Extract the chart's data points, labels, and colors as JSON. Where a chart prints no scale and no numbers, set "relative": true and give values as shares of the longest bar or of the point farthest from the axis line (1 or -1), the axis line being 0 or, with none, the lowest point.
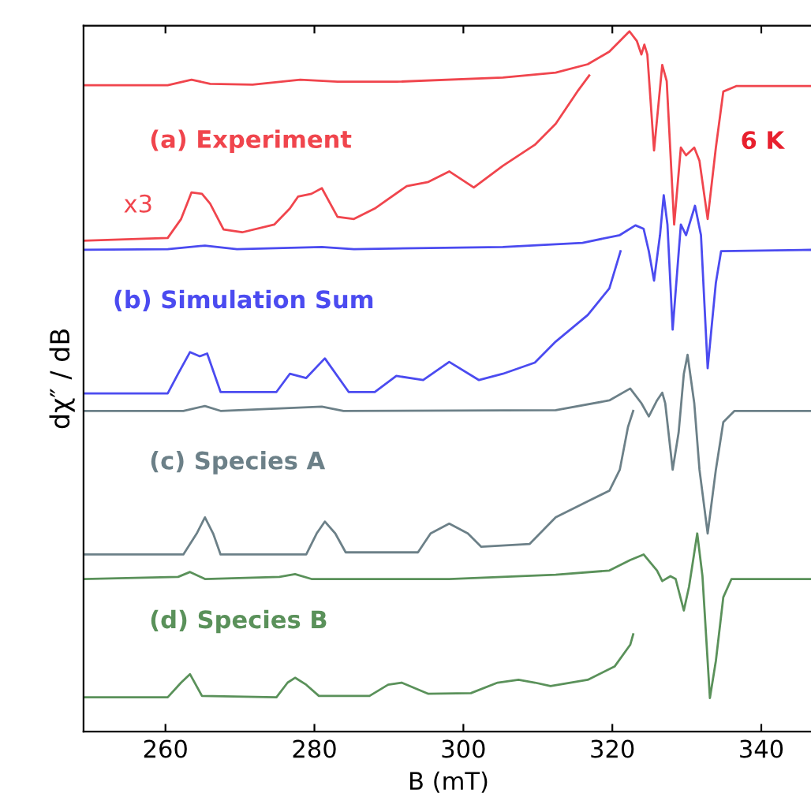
{
  "chart_data": {
    "type": "line",
    "relative": true,
    "xlabel": "B (mT)",
    "ylabel": "dχ″ / dB",
    "xlim": [
      249,
      347
    ],
    "xticks": [
      260,
      280,
      300,
      320,
      340
    ],
    "tick_labels": "x",
    "grid": false,
    "legend": false,
    "annotations": [
      "x3",
      "6 K"
    ],
    "series": [
      {
        "name": "(a) Experiment",
        "color": "#f0454d",
        "x": [
          249,
          260.3,
          263.5,
          266,
          271.7,
          278.1,
          283.1,
          291,
          305.3,
          312.4,
          316.7,
          319.6,
          322.3,
          323.3,
          323.9,
          324.3,
          324.7,
          325.6,
          326.7,
          327.3,
          328.3,
          329.2,
          329.9,
          331,
          331.7,
          332.8,
          333.9,
          334.9,
          336.7,
          347
        ],
        "values": [
          0.923,
          0.923,
          0.931,
          0.925,
          0.924,
          0.931,
          0.928,
          0.928,
          0.934,
          0.941,
          0.953,
          0.971,
          1.0,
          0.986,
          0.967,
          0.981,
          0.967,
          0.83,
          0.952,
          0.929,
          0.724,
          0.834,
          0.823,
          0.834,
          0.815,
          0.732,
          0.834,
          0.914,
          0.922,
          0.922
        ]
      },
      {
        "color": "#f0454d",
        "x": [
          249,
          260.3,
          262.1,
          263.5,
          264.9,
          266,
          267.8,
          270.3,
          274.6,
          276.7,
          277.8,
          279.6,
          281,
          283.1,
          285.3,
          288.1,
          292.4,
          295.3,
          298.1,
          301.4,
          305.3,
          309.6,
          312.4,
          315.3,
          316.9
        ],
        "values": [
          0.701,
          0.705,
          0.732,
          0.77,
          0.768,
          0.754,
          0.717,
          0.713,
          0.724,
          0.747,
          0.764,
          0.768,
          0.776,
          0.735,
          0.732,
          0.747,
          0.779,
          0.785,
          0.8,
          0.777,
          0.808,
          0.838,
          0.868,
          0.914,
          0.937
        ]
      },
      {
        "name": "(b) Simulation Sum",
        "color": "#4b4bf0",
        "x": [
          249,
          260.3,
          265.3,
          269.6,
          281,
          285.3,
          305.3,
          316,
          321,
          323.1,
          324.2,
          324.9,
          325.6,
          326.4,
          326.9,
          327.4,
          328.1,
          329.2,
          329.9,
          331.1,
          331.9,
          332.8,
          333.9,
          334.6,
          347
        ],
        "values": [
          0.688,
          0.689,
          0.694,
          0.689,
          0.692,
          0.689,
          0.692,
          0.698,
          0.709,
          0.723,
          0.718,
          0.686,
          0.644,
          0.709,
          0.766,
          0.724,
          0.574,
          0.724,
          0.709,
          0.751,
          0.709,
          0.519,
          0.641,
          0.686,
          0.688
        ]
      },
      {
        "color": "#4b4bf0",
        "x": [
          249,
          260.3,
          261.7,
          263.3,
          264.6,
          265.6,
          267.4,
          274.9,
          276.7,
          278.9,
          281.4,
          284.6,
          288.1,
          291,
          294.6,
          298.1,
          302.1,
          305.3,
          309.6,
          312.4,
          316.7,
          319.6,
          321.1
        ],
        "values": [
          0.483,
          0.483,
          0.511,
          0.542,
          0.536,
          0.54,
          0.485,
          0.485,
          0.511,
          0.505,
          0.533,
          0.485,
          0.485,
          0.508,
          0.502,
          0.528,
          0.502,
          0.511,
          0.527,
          0.557,
          0.595,
          0.633,
          0.686
        ]
      },
      {
        "name": "(c) Species A",
        "color": "#6c8088",
        "x": [
          249,
          262.4,
          265.3,
          267.4,
          281,
          283.9,
          312.4,
          319.6,
          322.4,
          323.9,
          324.9,
          326,
          326.7,
          327.1,
          328.1,
          328.9,
          329.6,
          330.1,
          331,
          331.7,
          332.8,
          333.9,
          334.9,
          336.4,
          347
        ],
        "values": [
          0.458,
          0.458,
          0.465,
          0.458,
          0.464,
          0.458,
          0.459,
          0.473,
          0.49,
          0.469,
          0.45,
          0.473,
          0.484,
          0.469,
          0.374,
          0.427,
          0.511,
          0.538,
          0.469,
          0.374,
          0.283,
          0.374,
          0.442,
          0.458,
          0.458
        ]
      },
      {
        "color": "#6c8088",
        "x": [
          249,
          262.4,
          264.2,
          265.3,
          266.4,
          267.4,
          278.9,
          280.3,
          281.4,
          282.8,
          284.2,
          293.9,
          295.6,
          298.1,
          300.6,
          302.4,
          308.9,
          312.4,
          316.7,
          319.6,
          321,
          322.1,
          322.8
        ],
        "values": [
          0.253,
          0.253,
          0.283,
          0.306,
          0.283,
          0.253,
          0.253,
          0.283,
          0.3,
          0.283,
          0.256,
          0.256,
          0.283,
          0.297,
          0.283,
          0.264,
          0.268,
          0.306,
          0.329,
          0.344,
          0.374,
          0.435,
          0.458
        ]
      },
      {
        "name": "(d) Species B",
        "color": "#5a915a",
        "x": [
          249,
          261.7,
          263.3,
          265.3,
          275.3,
          277.4,
          279.6,
          298.1,
          312.4,
          319.6,
          322.4,
          324.2,
          326,
          326.7,
          327.8,
          328.5,
          329.6,
          330.3,
          331.4,
          332.1,
          333.1,
          333.9,
          334.9,
          336,
          347
        ],
        "values": [
          0.218,
          0.221,
          0.228,
          0.218,
          0.221,
          0.225,
          0.218,
          0.218,
          0.224,
          0.23,
          0.245,
          0.253,
          0.23,
          0.215,
          0.222,
          0.218,
          0.173,
          0.207,
          0.283,
          0.222,
          0.048,
          0.101,
          0.192,
          0.218,
          0.218
        ]
      },
      {
        "color": "#5a915a",
        "x": [
          249,
          260.3,
          262.1,
          263.3,
          264.9,
          274.9,
          276.4,
          277.4,
          278.9,
          280.6,
          287.4,
          289.9,
          291.7,
          295.3,
          301,
          304.6,
          307.4,
          309.6,
          311.7,
          316.7,
          320.3,
          322.4,
          322.8
        ],
        "values": [
          0.049,
          0.049,
          0.07,
          0.082,
          0.051,
          0.049,
          0.07,
          0.077,
          0.067,
          0.051,
          0.051,
          0.067,
          0.07,
          0.054,
          0.055,
          0.07,
          0.074,
          0.07,
          0.065,
          0.074,
          0.093,
          0.124,
          0.139
        ]
      }
    ]
  }
}
